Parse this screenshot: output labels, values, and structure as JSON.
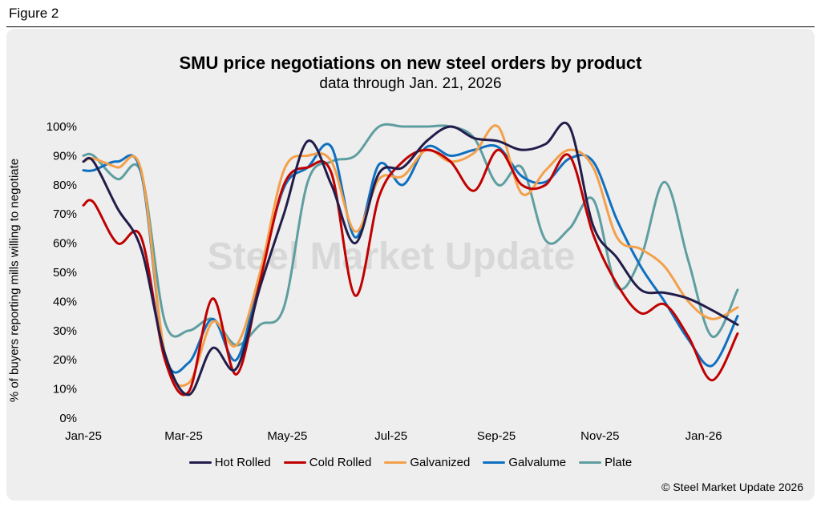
{
  "figure_label": "Figure 2",
  "copyright": "© Steel Market Update 2026",
  "watermark": "Steel Market Update",
  "colors": {
    "panel_bg": "#eeeeee",
    "Hot Rolled": "#221c4a",
    "Cold Rolled": "#c00000",
    "Galvanized": "#f4a04a",
    "Galvalume": "#0f6fc0",
    "Plate": "#5f9ea0"
  },
  "chart_data": {
    "type": "line",
    "title": "SMU price negotiations on new steel orders by product",
    "subtitle": "data through Jan. 21, 2026",
    "ylabel": "% of buyers reporting mills willing to negotiate",
    "xlabel": "",
    "ylim": [
      0,
      100
    ],
    "yticks": [
      0,
      10,
      20,
      30,
      40,
      50,
      60,
      70,
      80,
      90,
      100
    ],
    "xlim": [
      "2025-01-01",
      "2026-01-21"
    ],
    "xticks": [
      {
        "date": "2025-01-01",
        "label": "Jan-25"
      },
      {
        "date": "2025-03-01",
        "label": "Mar-25"
      },
      {
        "date": "2025-05-01",
        "label": "May-25"
      },
      {
        "date": "2025-07-01",
        "label": "Jul-25"
      },
      {
        "date": "2025-09-01",
        "label": "Sep-25"
      },
      {
        "date": "2025-11-01",
        "label": "Nov-25"
      },
      {
        "date": "2026-01-01",
        "label": "Jan-26"
      }
    ],
    "grid": false,
    "legend_position": "bottom",
    "x": [
      "2025-01-01",
      "2025-01-07",
      "2025-01-21",
      "2025-02-04",
      "2025-02-18",
      "2025-03-04",
      "2025-03-18",
      "2025-04-01",
      "2025-04-15",
      "2025-04-29",
      "2025-05-13",
      "2025-05-27",
      "2025-06-10",
      "2025-06-24",
      "2025-07-08",
      "2025-07-22",
      "2025-08-05",
      "2025-08-19",
      "2025-09-02",
      "2025-09-16",
      "2025-09-30",
      "2025-10-14",
      "2025-10-28",
      "2025-11-11",
      "2025-11-25",
      "2025-12-09",
      "2025-12-23",
      "2026-01-06",
      "2026-01-21"
    ],
    "series": [
      {
        "name": "Hot Rolled",
        "values": [
          88,
          88,
          72,
          58,
          22,
          8,
          24,
          17,
          45,
          70,
          95,
          80,
          60,
          84,
          86,
          95,
          100,
          96,
          95,
          92,
          94,
          100,
          66,
          55,
          44,
          43,
          41,
          37,
          32
        ]
      },
      {
        "name": "Cold Rolled",
        "values": [
          73,
          74,
          60,
          62,
          20,
          9,
          41,
          15,
          47,
          80,
          86,
          84,
          42,
          76,
          88,
          92,
          88,
          78,
          92,
          80,
          80,
          90,
          63,
          46,
          36,
          39,
          28,
          13,
          29
        ]
      },
      {
        "name": "Galvanized",
        "values": [
          88,
          89,
          86,
          85,
          22,
          12,
          33,
          25,
          50,
          85,
          90,
          88,
          64,
          82,
          83,
          92,
          88,
          91,
          100,
          77,
          85,
          92,
          86,
          62,
          58,
          52,
          40,
          34,
          38
        ]
      },
      {
        "name": "Galvalume",
        "values": [
          85,
          85,
          88,
          84,
          22,
          19,
          34,
          20,
          49,
          79,
          86,
          93,
          62,
          87,
          80,
          93,
          90,
          92,
          93,
          83,
          81,
          89,
          88,
          68,
          52,
          40,
          27,
          18,
          35
        ]
      },
      {
        "name": "Plate",
        "values": [
          90,
          90,
          82,
          84,
          33,
          30,
          34,
          25,
          32,
          38,
          81,
          88,
          90,
          100,
          100,
          100,
          100,
          96,
          80,
          86,
          61,
          65,
          75,
          45,
          55,
          81,
          54,
          28,
          44
        ]
      }
    ]
  }
}
